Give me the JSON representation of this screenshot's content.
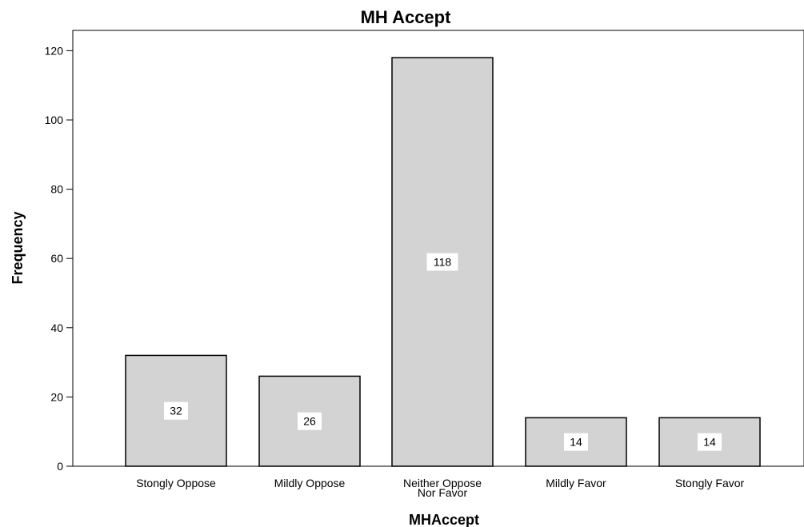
{
  "chart_data": {
    "type": "bar",
    "title": "MH Accept",
    "xlabel": "MHAccept",
    "ylabel": "Frequency",
    "categories": [
      "Stongly Oppose",
      "Mildly Oppose",
      "Neither Oppose Nor Favor",
      "Mildly Favor",
      "Stongly Favor"
    ],
    "category_lines": [
      [
        "Stongly Oppose"
      ],
      [
        "Mildly Oppose"
      ],
      [
        "Neither Oppose",
        "Nor Favor"
      ],
      [
        "Mildly Favor"
      ],
      [
        "Stongly Favor"
      ]
    ],
    "values": [
      32,
      26,
      118,
      14,
      14
    ],
    "data_labels": [
      "32",
      "26",
      "118",
      "14",
      "14"
    ],
    "ylim": [
      0,
      120
    ],
    "yticks": [
      0,
      20,
      40,
      60,
      80,
      100,
      120
    ],
    "grid": false,
    "legend": "none",
    "bar_color": "#d3d3d3",
    "bar_edge_color": "#000000"
  }
}
